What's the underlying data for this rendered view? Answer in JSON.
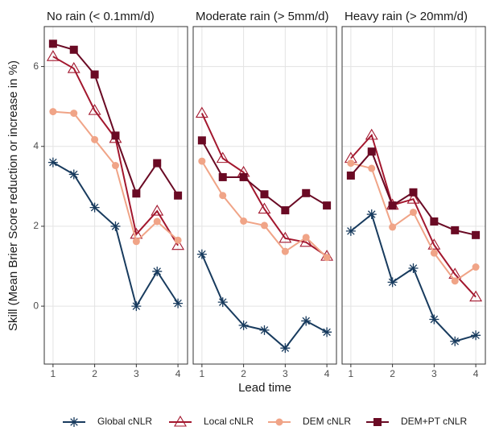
{
  "axes": {
    "xlabel": "Lead time",
    "ylabel": "Skill (Mean Brier Score reduction or increase in %)"
  },
  "chart_data": [
    {
      "type": "line",
      "title": "No rain (< 0.1mm/d)",
      "x": [
        1,
        1.5,
        2,
        2.5,
        3,
        3.5,
        4
      ],
      "xlim": [
        0.79,
        4.23
      ],
      "xticks": [
        1,
        2,
        3,
        4
      ],
      "ylim": [
        -1.45,
        7.0
      ],
      "yticks": [
        0,
        2,
        4,
        6
      ],
      "grid": true,
      "series": [
        {
          "name": "Global cNLR",
          "color": "#183b5e",
          "marker": "asterisk",
          "values": [
            3.6,
            3.3,
            2.47,
            2.0,
            0.0,
            0.87,
            0.07
          ]
        },
        {
          "name": "Local cNLR",
          "color": "#a3172e",
          "marker": "triangle-open",
          "values": [
            6.25,
            5.95,
            4.9,
            4.2,
            1.8,
            2.38,
            1.52
          ]
        },
        {
          "name": "DEM cNLR",
          "color": "#f0a487",
          "marker": "circle",
          "values": [
            4.87,
            4.83,
            4.17,
            3.52,
            1.62,
            2.12,
            1.65
          ]
        },
        {
          "name": "DEM+PT cNLR",
          "color": "#6a0a24",
          "marker": "square",
          "values": [
            6.57,
            6.42,
            5.8,
            4.27,
            2.82,
            3.58,
            2.77
          ]
        }
      ]
    },
    {
      "type": "line",
      "title": "Moderate rain (> 5mm/d)",
      "x": [
        1,
        1.5,
        2,
        2.5,
        3,
        3.5,
        4
      ],
      "xlim": [
        0.79,
        4.23
      ],
      "xticks": [
        1,
        2,
        3,
        4
      ],
      "ylim": [
        -1.45,
        7.0
      ],
      "yticks": [
        0,
        2,
        4,
        6
      ],
      "grid": true,
      "series": [
        {
          "name": "Global cNLR",
          "color": "#183b5e",
          "marker": "asterisk",
          "values": [
            1.3,
            0.1,
            -0.48,
            -0.6,
            -1.05,
            -0.37,
            -0.65
          ]
        },
        {
          "name": "Local cNLR",
          "color": "#a3172e",
          "marker": "triangle-open",
          "values": [
            4.83,
            3.7,
            3.35,
            2.43,
            1.7,
            1.6,
            1.25
          ]
        },
        {
          "name": "DEM cNLR",
          "color": "#f0a487",
          "marker": "circle",
          "values": [
            3.63,
            2.77,
            2.13,
            2.02,
            1.37,
            1.72,
            1.22
          ]
        },
        {
          "name": "DEM+PT cNLR",
          "color": "#6a0a24",
          "marker": "square",
          "values": [
            4.15,
            3.23,
            3.23,
            2.8,
            2.4,
            2.83,
            2.52
          ]
        }
      ]
    },
    {
      "type": "line",
      "title": "Heavy rain (> 20mm/d)",
      "x": [
        1,
        1.5,
        2,
        2.5,
        3,
        3.5,
        4
      ],
      "xlim": [
        0.79,
        4.23
      ],
      "xticks": [
        1,
        2,
        3,
        4
      ],
      "ylim": [
        -1.45,
        7.0
      ],
      "yticks": [
        0,
        2,
        4,
        6
      ],
      "grid": true,
      "series": [
        {
          "name": "Global cNLR",
          "color": "#183b5e",
          "marker": "asterisk",
          "values": [
            1.88,
            2.3,
            0.6,
            0.95,
            -0.33,
            -0.88,
            -0.73
          ]
        },
        {
          "name": "Local cNLR",
          "color": "#a3172e",
          "marker": "triangle-open",
          "values": [
            3.7,
            4.28,
            2.53,
            2.68,
            1.53,
            0.8,
            0.23
          ]
        },
        {
          "name": "DEM cNLR",
          "color": "#f0a487",
          "marker": "circle",
          "values": [
            3.58,
            3.45,
            1.98,
            2.35,
            1.33,
            0.63,
            0.98
          ]
        },
        {
          "name": "DEM+PT cNLR",
          "color": "#6a0a24",
          "marker": "square",
          "values": [
            3.27,
            3.87,
            2.52,
            2.85,
            2.12,
            1.9,
            1.78
          ]
        }
      ]
    }
  ]
}
